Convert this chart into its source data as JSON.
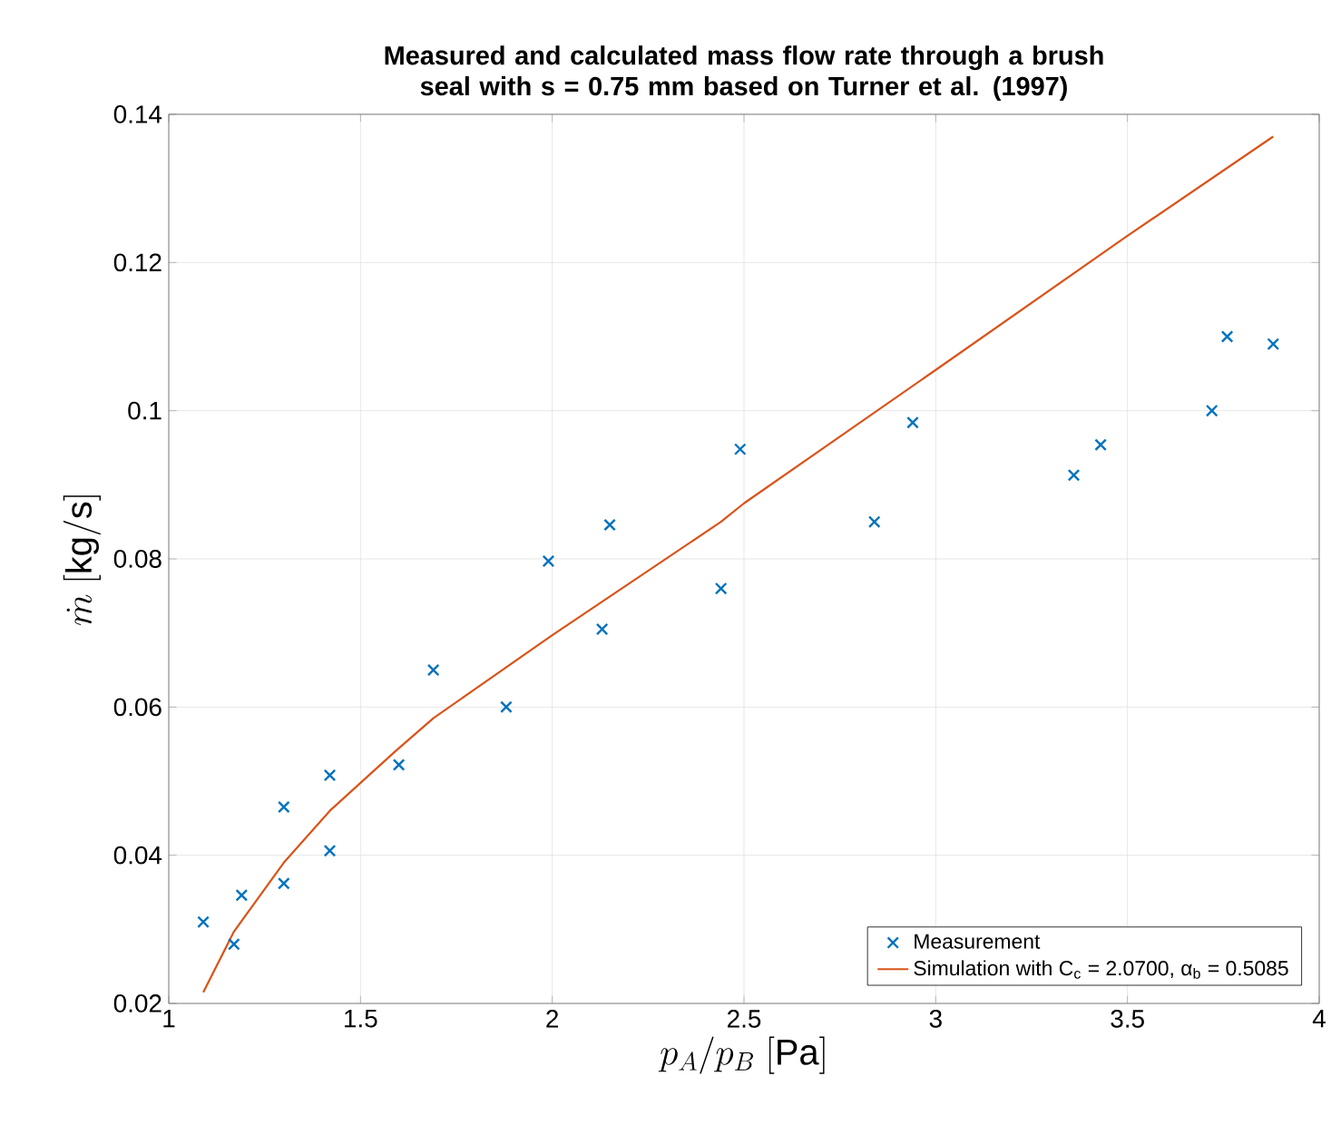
{
  "chart_data": {
    "type": "scatter",
    "title": "Measured and calculated mass flow rate through a brush seal with s = 0.75 mm based on Turner et al. (1997)",
    "xlabel": "p_A/p_B\\ [\\mathrm{Pa}]",
    "ylabel": "\\dot{m}\\ [\\mathrm{kg/s}]",
    "xlim": [
      1,
      4
    ],
    "ylim": [
      0.02,
      0.14
    ],
    "xticks": [
      1,
      1.5,
      2,
      2.5,
      3,
      3.5,
      4
    ],
    "yticks": [
      0.02,
      0.04,
      0.06,
      0.08,
      0.1,
      0.12,
      0.14
    ],
    "grid": true,
    "legend": "bottom right",
    "series": [
      {
        "name": "Measurement",
        "marker": "cross",
        "color": "#0072bd",
        "x": [
          1.09,
          1.17,
          1.19,
          1.3,
          1.3,
          1.42,
          1.42,
          1.6,
          1.69,
          1.88,
          1.99,
          2.13,
          2.15,
          2.44,
          2.49,
          2.84,
          2.94,
          3.36,
          3.43,
          3.72,
          3.76,
          3.88
        ],
        "values": [
          0.031,
          0.028,
          0.0346,
          0.0362,
          0.0465,
          0.0508,
          0.0406,
          0.0522,
          0.065,
          0.06,
          0.0797,
          0.0705,
          0.0846,
          0.076,
          0.0948,
          0.085,
          0.0984,
          0.0913,
          0.0954,
          0.1,
          0.11,
          0.109
        ]
      },
      {
        "name": "Simulation with C$_{c}$ = 2.0700, α$_{b}$ = 0.5085",
        "type": "line",
        "line_style": "solid",
        "marker": "none",
        "color": "#d95319",
        "x": [
          1.09,
          1.17,
          1.3,
          1.42,
          1.59,
          1.69,
          2.0,
          2.44,
          2.5,
          3.0,
          3.5,
          3.88
        ],
        "values": [
          0.0215,
          0.0297,
          0.039,
          0.046,
          0.054,
          0.0585,
          0.0697,
          0.085,
          0.0875,
          0.1055,
          0.1236,
          0.137
        ]
      }
    ]
  }
}
